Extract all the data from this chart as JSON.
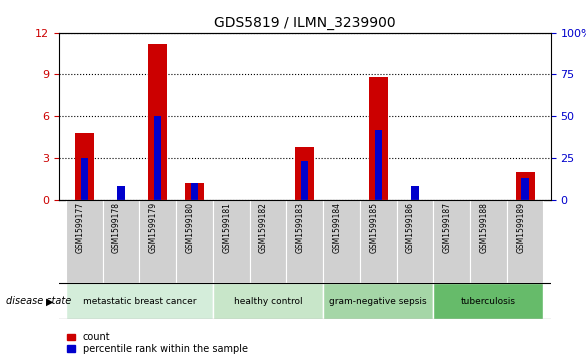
{
  "title": "GDS5819 / ILMN_3239900",
  "samples": [
    "GSM1599177",
    "GSM1599178",
    "GSM1599179",
    "GSM1599180",
    "GSM1599181",
    "GSM1599182",
    "GSM1599183",
    "GSM1599184",
    "GSM1599185",
    "GSM1599186",
    "GSM1599187",
    "GSM1599188",
    "GSM1599189"
  ],
  "red_values": [
    4.8,
    0.0,
    11.2,
    1.2,
    0.0,
    0.0,
    3.8,
    0.0,
    8.8,
    0.0,
    0.0,
    0.0,
    2.0
  ],
  "blue_pct": [
    25,
    8,
    50,
    10,
    0,
    0,
    23,
    0,
    42,
    8,
    0,
    0,
    13
  ],
  "ylim_left": [
    0,
    12
  ],
  "ylim_right": [
    0,
    100
  ],
  "yticks_left": [
    0,
    3,
    6,
    9,
    12
  ],
  "yticks_right": [
    0,
    25,
    50,
    75,
    100
  ],
  "groups": [
    {
      "label": "metastatic breast cancer",
      "start": 0,
      "end": 4,
      "color": "#d4edda"
    },
    {
      "label": "healthy control",
      "start": 4,
      "end": 7,
      "color": "#c8e6c9"
    },
    {
      "label": "gram-negative sepsis",
      "start": 7,
      "end": 10,
      "color": "#a5d6a7"
    },
    {
      "label": "tuberculosis",
      "start": 10,
      "end": 13,
      "color": "#66bb6a"
    }
  ],
  "red_color": "#cc0000",
  "blue_color": "#0000cc",
  "tick_bg_color": "#d0d0d0",
  "legend_count_label": "count",
  "legend_pct_label": "percentile rank within the sample",
  "disease_state_label": "disease state"
}
